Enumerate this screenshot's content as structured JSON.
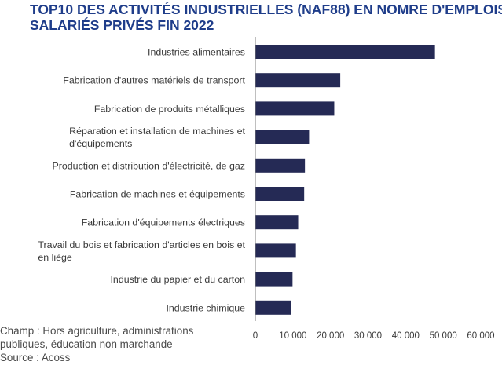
{
  "title_lines": [
    "TOP10 DES ACTIVITÉS INDUSTRIELLES (NAF88) EN NOMRE D'EMPLOIS",
    "SALARIÉS PRIVÉS FIN 2022"
  ],
  "footnote": {
    "line1": "Champ : Hors agriculture, administrations",
    "line2": "publiques, éducation non marchande",
    "line3": "Source : Acoss"
  },
  "colors": {
    "title": "#1f3d8a",
    "bar": "#252a55",
    "axis": "#7f7f7f"
  },
  "chart_data": {
    "type": "bar",
    "orientation": "horizontal",
    "title": "TOP10 DES ACTIVITÉS INDUSTRIELLES (NAF88) EN NOMRE D'EMPLOIS SALARIÉS PRIVÉS FIN 2022",
    "categories": [
      [
        "Industries alimentaires"
      ],
      [
        "Fabrication d'autres matériels de transport"
      ],
      [
        "Fabrication de produits métalliques"
      ],
      [
        "Réparation et installation de machines et",
        "d'équipements"
      ],
      [
        "Production et distribution d'électricité, de gaz"
      ],
      [
        "Fabrication de machines et équipements"
      ],
      [
        "Fabrication d'équipements électriques"
      ],
      [
        "Travail du bois et fabrication d'articles en bois et",
        "en liège"
      ],
      [
        "Industrie du papier et du carton"
      ],
      [
        "Industrie chimique"
      ]
    ],
    "values": [
      47800,
      22600,
      21000,
      14300,
      13200,
      13000,
      11400,
      10800,
      9900,
      9600
    ],
    "xlim": [
      0,
      60000
    ],
    "ticks": [
      0,
      10000,
      20000,
      30000,
      40000,
      50000,
      60000
    ],
    "tick_labels": [
      "0",
      "10 000",
      "20 000",
      "30 000",
      "40 000",
      "50 000",
      "60 000"
    ],
    "grid": false,
    "legend": "none"
  }
}
